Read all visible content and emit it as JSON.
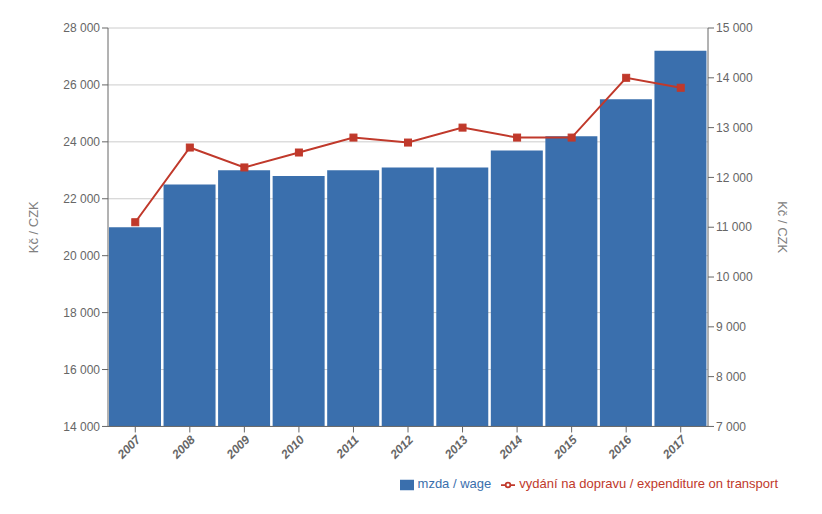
{
  "chart_data": {
    "type": "bar",
    "categories": [
      "2007",
      "2008",
      "2009",
      "2010",
      "2011",
      "2012",
      "2013",
      "2014",
      "2015",
      "2016",
      "2017"
    ],
    "series": [
      {
        "name": "mzda / wage",
        "type": "bar",
        "color": "#3a6fad",
        "values": [
          21000,
          22500,
          23000,
          22800,
          23000,
          23100,
          23100,
          23700,
          24200,
          25500,
          27200
        ]
      },
      {
        "name": "vydání na dopravu / expenditure on transport",
        "type": "line",
        "color": "#c0392b",
        "marker": "square",
        "axis": "y2",
        "values": [
          11100,
          12600,
          12200,
          12500,
          12800,
          12700,
          13000,
          12800,
          12800,
          14000,
          13800
        ]
      }
    ],
    "ylabel": "Kč / CZK",
    "y2label": "Kč / CZK",
    "ylim": [
      14000,
      28000
    ],
    "yticks": [
      {
        "value": 14000,
        "label": "14 000"
      },
      {
        "value": 16000,
        "label": "16 000"
      },
      {
        "value": 18000,
        "label": "18 000"
      },
      {
        "value": 20000,
        "label": "20 000"
      },
      {
        "value": 22000,
        "label": "22 000"
      },
      {
        "value": 24000,
        "label": "24 000"
      },
      {
        "value": 26000,
        "label": "26 000"
      },
      {
        "value": 28000,
        "label": "28 000"
      }
    ],
    "y2lim": [
      7000,
      15000
    ],
    "y2ticks": [
      {
        "value": 7000,
        "label": "7 000"
      },
      {
        "value": 8000,
        "label": "8 000"
      },
      {
        "value": 9000,
        "label": "9 000"
      },
      {
        "value": 10000,
        "label": "10 000"
      },
      {
        "value": 11000,
        "label": "11 000"
      },
      {
        "value": 12000,
        "label": "12 000"
      },
      {
        "value": 13000,
        "label": "13 000"
      },
      {
        "value": 14000,
        "label": "14 000"
      },
      {
        "value": 15000,
        "label": "15 000"
      }
    ],
    "grid": true,
    "legend": "lower right"
  }
}
